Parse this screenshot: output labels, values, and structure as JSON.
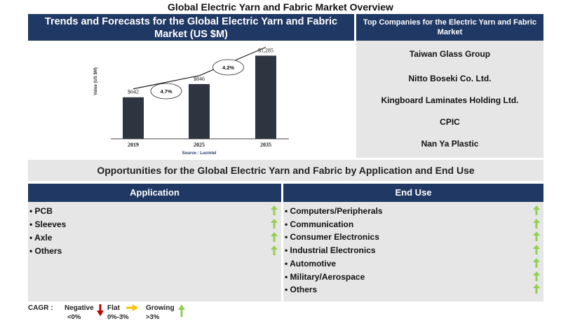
{
  "title": "Global Electric Yarn and Fabric Market Overview",
  "trend_panel": {
    "title": "Trends and Forecasts for the Global Electric Yarn and Fabric Market (US $M)",
    "source": "Source : Lucintel"
  },
  "chart_data": {
    "type": "bar",
    "categories": [
      "2019",
      "2025",
      "2035"
    ],
    "values": [
      642,
      846,
      1285
    ],
    "value_labels": [
      "$642",
      "$846",
      "$1,285"
    ],
    "ylabel": "Value (US $M)",
    "ylim": [
      0,
      1300
    ],
    "cagr_labels": [
      "4.7%",
      "4.2%"
    ],
    "bar_color": "#2e3440",
    "grid": false
  },
  "companies": {
    "title": "Top Companies for the Electric Yarn and Fabric Market",
    "items": [
      "Taiwan Glass Group",
      "Nitto Boseki Co. Ltd.",
      "Kingboard Laminates Holding Ltd.",
      "CPIC",
      "Nan Ya Plastic"
    ]
  },
  "opportunities": {
    "title": "Opportunities for the Global Electric Yarn and Fabric by Application and End Use",
    "application": {
      "header": "Application",
      "items": [
        "• PCB",
        "• Sleeves",
        "• Axle",
        "• Others"
      ]
    },
    "end_use": {
      "header": "End Use",
      "items": [
        "• Computers/Peripherals",
        "• Communication",
        "• Consumer Electronics",
        "• Industrial Electronics",
        "• Automotive",
        "• Military/Aerospace",
        "• Others"
      ]
    }
  },
  "legend": {
    "cagr": "CAGR :",
    "negative": "Negative",
    "negative_range": "<0%",
    "flat": "Flat",
    "flat_range": "0%-3%",
    "growing": "Growing",
    "growing_range": ">3%",
    "colors": {
      "negative": "#c00000",
      "flat": "#ffc000",
      "growing": "#92d050"
    },
    "arrow_icon": "up-arrow-icon"
  }
}
